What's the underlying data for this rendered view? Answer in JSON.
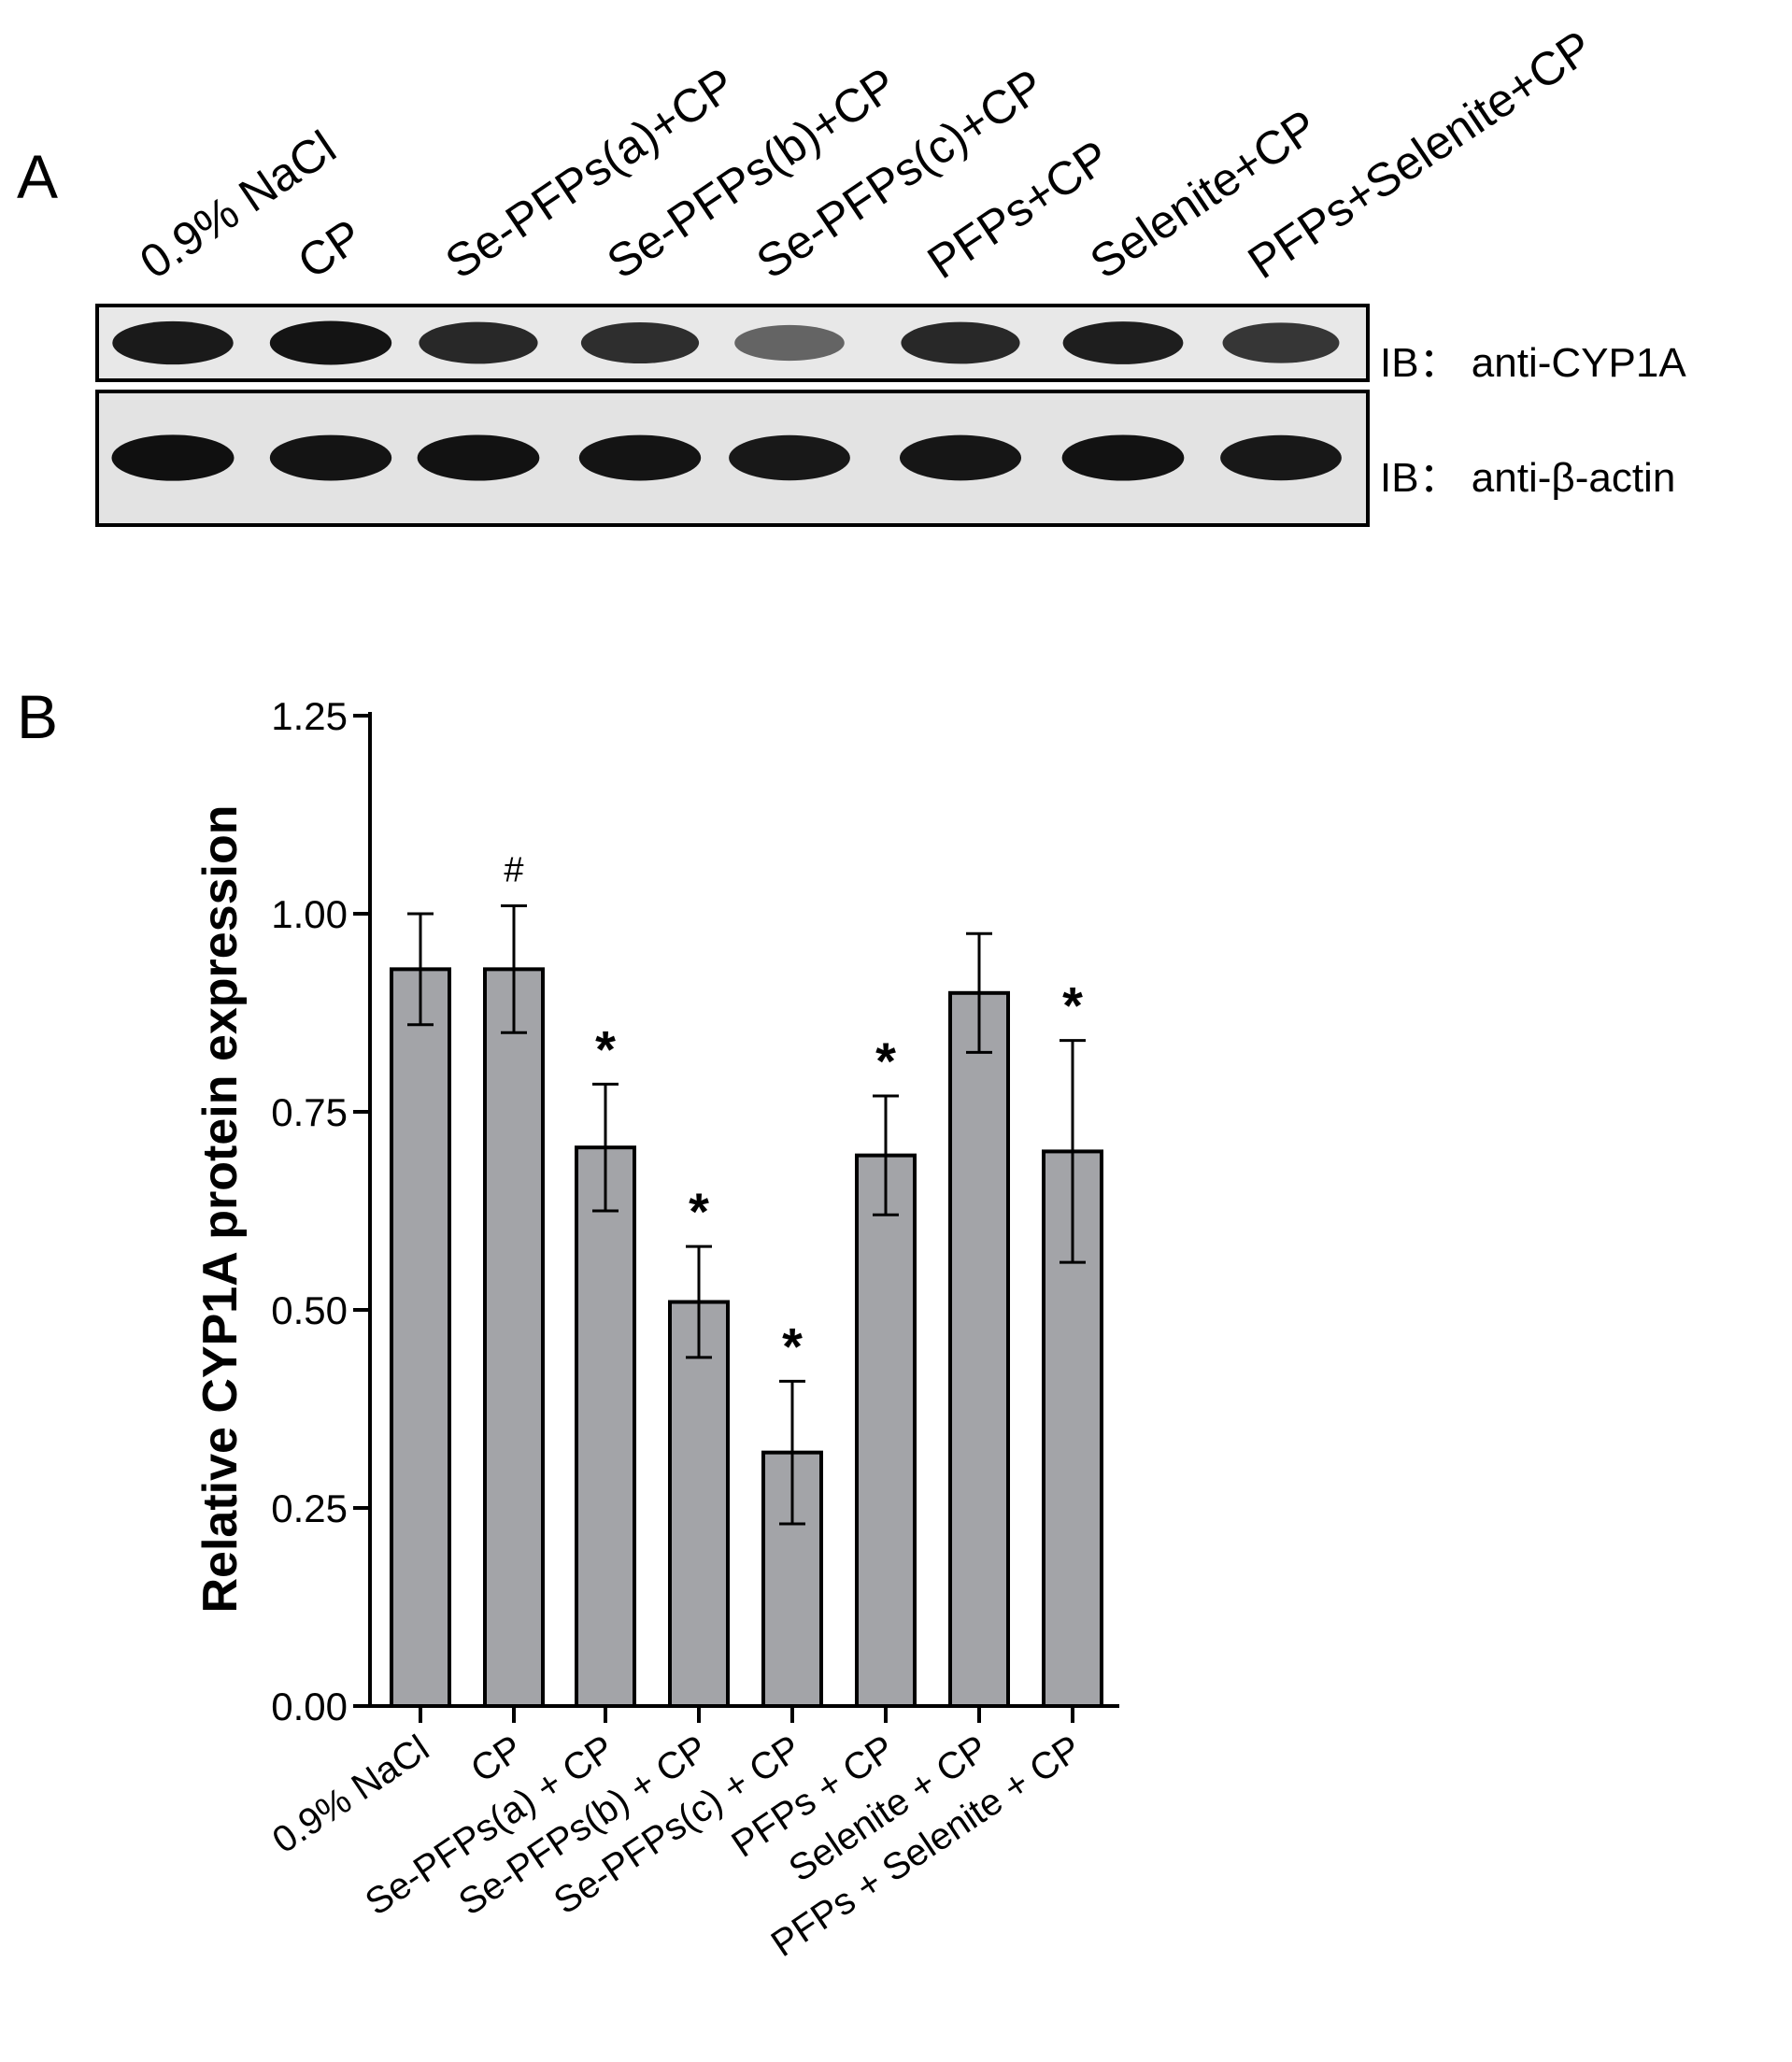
{
  "panel_a": {
    "label": "A",
    "lanes": [
      "0.9% NaCl",
      "CP",
      "Se-PFPs(a)+CP",
      "Se-PFPs(b)+CP",
      "Se-PFPs(c)+CP",
      "PFPs+CP",
      "Selenite+CP",
      "PFPs+Selenite+CP"
    ],
    "blots": [
      {
        "label": "IB：  anti-CYP1A",
        "band_intensity": [
          0.92,
          0.95,
          0.85,
          0.82,
          0.55,
          0.85,
          0.9,
          0.78
        ]
      },
      {
        "label": "IB：  anti-β-actin",
        "band_intensity": [
          0.97,
          0.95,
          0.96,
          0.95,
          0.93,
          0.94,
          0.96,
          0.93
        ]
      }
    ]
  },
  "panel_b": {
    "label": "B"
  },
  "chart_data": {
    "type": "bar",
    "categories": [
      "0.9% NaCl",
      "CP",
      "Se-PFPs(a) + CP",
      "Se-PFPs(b) + CP",
      "Se-PFPs(c) + CP",
      "PFPs + CP",
      "Selenite + CP",
      "PFPs + Selenite + CP"
    ],
    "values": [
      0.93,
      0.93,
      0.705,
      0.51,
      0.32,
      0.695,
      0.9,
      0.7
    ],
    "errors": [
      0.07,
      0.08,
      0.08,
      0.07,
      0.09,
      0.075,
      0.075,
      0.14
    ],
    "annotations": [
      "",
      "#",
      "*",
      "*",
      "*",
      "*",
      "",
      "*"
    ],
    "ylabel": "Relative CYP1A protein expression",
    "xlabel": "",
    "ylim": [
      0,
      1.25
    ],
    "yticks": [
      "0.00",
      "0.25",
      "0.50",
      "0.75",
      "1.00",
      "1.25"
    ],
    "bar_color": "#a3a4a8",
    "grid": false
  }
}
